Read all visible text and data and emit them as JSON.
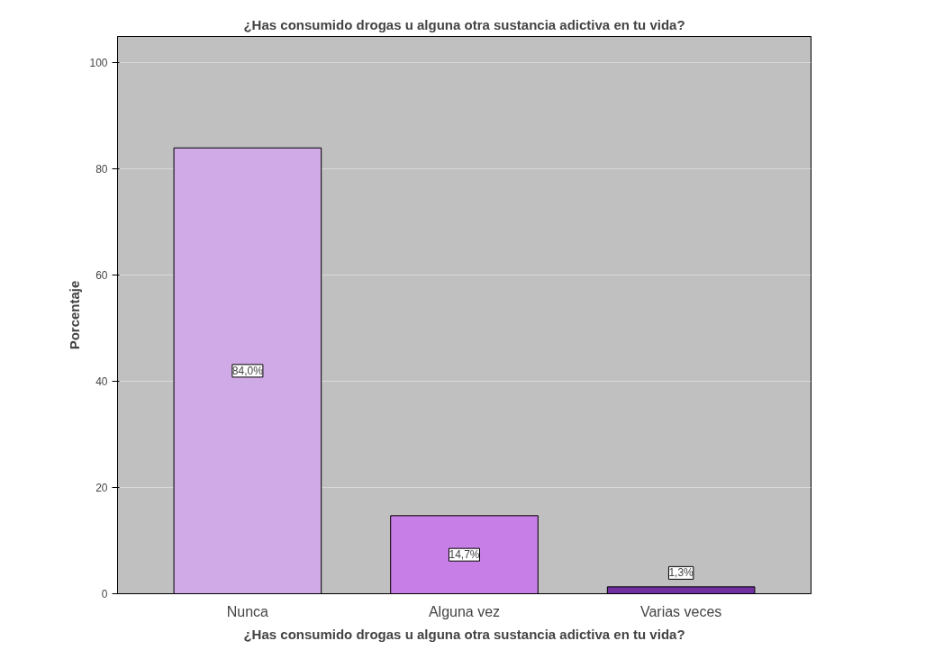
{
  "chart_data": {
    "type": "bar",
    "title": "¿Has consumido drogas u alguna otra sustancia adictiva en tu vida?",
    "xlabel": "¿Has consumido drogas u alguna otra sustancia adictiva en tu vida?",
    "ylabel": "Porcentaje",
    "categories": [
      "Nunca",
      "Alguna vez",
      "Varias veces"
    ],
    "values": [
      84.0,
      14.7,
      1.3
    ],
    "value_labels": [
      "84,0%",
      "14,7%",
      "1,3%"
    ],
    "colors": [
      "#d0aae6",
      "#c77ee6",
      "#7030a0"
    ],
    "ylim": [
      0,
      105
    ],
    "yticks": [
      0,
      20,
      40,
      60,
      80,
      100
    ],
    "grid": "y"
  }
}
